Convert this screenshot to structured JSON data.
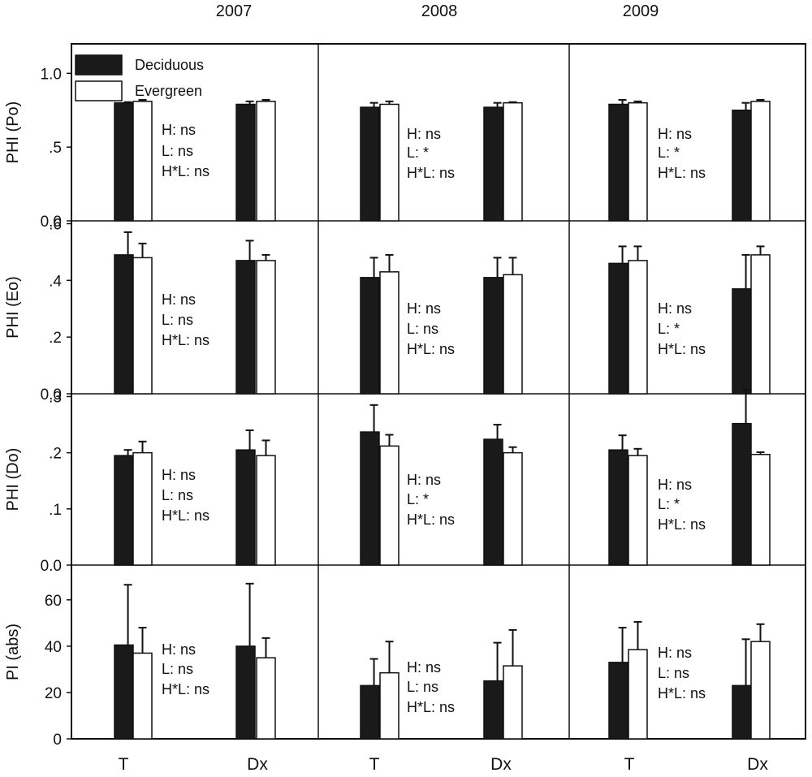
{
  "chart_data": {
    "type": "bar",
    "columns": [
      "2007",
      "2008",
      "2009"
    ],
    "categories": [
      "T",
      "Dx"
    ],
    "legend": [
      {
        "name": "Deciduous",
        "color": "#1a1a1a"
      },
      {
        "name": "Evergreen",
        "color": "#ffffff"
      }
    ],
    "rows": [
      {
        "ylabel": "PHI (Po)",
        "ylim": [
          0,
          1.2
        ],
        "yticks": [
          {
            "v": 0,
            "t": "0.0"
          },
          {
            "v": 0.5,
            "t": ".5"
          },
          {
            "v": 1.0,
            "t": "1.0"
          }
        ],
        "panels": [
          {
            "values": {
              "Deciduous": [
                0.8,
                0.79
              ],
              "Evergreen": [
                0.81,
                0.81
              ]
            },
            "errors": {
              "Deciduous": [
                0.005,
                0.02
              ],
              "Evergreen": [
                0.01,
                0.01
              ]
            },
            "stats": [
              "H: ns",
              "L: ns",
              "H*L: ns"
            ]
          },
          {
            "values": {
              "Deciduous": [
                0.77,
                0.77
              ],
              "Evergreen": [
                0.79,
                0.8
              ]
            },
            "errors": {
              "Deciduous": [
                0.03,
                0.03
              ],
              "Evergreen": [
                0.02,
                0.005
              ]
            },
            "stats": [
              "H: ns",
              "L: *",
              "H*L: ns"
            ]
          },
          {
            "values": {
              "Deciduous": [
                0.79,
                0.75
              ],
              "Evergreen": [
                0.8,
                0.81
              ]
            },
            "errors": {
              "Deciduous": [
                0.03,
                0.05
              ],
              "Evergreen": [
                0.01,
                0.01
              ]
            },
            "stats": [
              "H: ns",
              "L: *",
              "H*L: ns"
            ]
          }
        ]
      },
      {
        "ylabel": "PHI (Eo)",
        "ylim": [
          0,
          0.61
        ],
        "yticks": [
          {
            "v": 0,
            "t": "0.0"
          },
          {
            "v": 0.2,
            "t": ".2"
          },
          {
            "v": 0.4,
            "t": ".4"
          },
          {
            "v": 0.6,
            "t": ".6"
          }
        ],
        "panels": [
          {
            "values": {
              "Deciduous": [
                0.49,
                0.47
              ],
              "Evergreen": [
                0.48,
                0.47
              ]
            },
            "errors": {
              "Deciduous": [
                0.08,
                0.07
              ],
              "Evergreen": [
                0.05,
                0.02
              ]
            },
            "stats": [
              "H: ns",
              "L: ns",
              "H*L: ns"
            ]
          },
          {
            "values": {
              "Deciduous": [
                0.41,
                0.41
              ],
              "Evergreen": [
                0.43,
                0.42
              ]
            },
            "errors": {
              "Deciduous": [
                0.07,
                0.07
              ],
              "Evergreen": [
                0.06,
                0.06
              ]
            },
            "stats": [
              "H: ns",
              "L: ns",
              "H*L: ns"
            ]
          },
          {
            "values": {
              "Deciduous": [
                0.46,
                0.37
              ],
              "Evergreen": [
                0.47,
                0.49
              ]
            },
            "errors": {
              "Deciduous": [
                0.06,
                0.12
              ],
              "Evergreen": [
                0.05,
                0.03
              ]
            },
            "stats": [
              "H: ns",
              "L: *",
              "H*L: ns"
            ]
          }
        ]
      },
      {
        "ylabel": "PHI (Do)",
        "ylim": [
          0,
          0.305
        ],
        "yticks": [
          {
            "v": 0,
            "t": "0.0"
          },
          {
            "v": 0.1,
            "t": ".1"
          },
          {
            "v": 0.2,
            "t": ".2"
          },
          {
            "v": 0.3,
            "t": ".3"
          }
        ],
        "panels": [
          {
            "values": {
              "Deciduous": [
                0.195,
                0.205
              ],
              "Evergreen": [
                0.2,
                0.195
              ]
            },
            "errors": {
              "Deciduous": [
                0.01,
                0.035
              ],
              "Evergreen": [
                0.02,
                0.027
              ]
            },
            "stats": [
              "H: ns",
              "L: ns",
              "H*L: ns"
            ]
          },
          {
            "values": {
              "Deciduous": [
                0.237,
                0.224
              ],
              "Evergreen": [
                0.212,
                0.2
              ]
            },
            "errors": {
              "Deciduous": [
                0.048,
                0.026
              ],
              "Evergreen": [
                0.02,
                0.01
              ]
            },
            "stats": [
              "H: ns",
              "L: *",
              "H*L: ns"
            ]
          },
          {
            "values": {
              "Deciduous": [
                0.205,
                0.252
              ],
              "Evergreen": [
                0.195,
                0.197
              ]
            },
            "errors": {
              "Deciduous": [
                0.026,
                0.06
              ],
              "Evergreen": [
                0.012,
                0.004
              ]
            },
            "stats": [
              "H: ns",
              "L: *",
              "H*L: ns"
            ]
          }
        ]
      },
      {
        "ylabel": "PI (abs)",
        "ylim": [
          0,
          75
        ],
        "yticks": [
          {
            "v": 0,
            "t": "0"
          },
          {
            "v": 20,
            "t": "20"
          },
          {
            "v": 40,
            "t": "40"
          },
          {
            "v": 60,
            "t": "60"
          }
        ],
        "panels": [
          {
            "values": {
              "Deciduous": [
                40.5,
                40
              ],
              "Evergreen": [
                37,
                35
              ]
            },
            "errors": {
              "Deciduous": [
                26,
                27
              ],
              "Evergreen": [
                11,
                8.5
              ]
            },
            "stats": [
              "H: ns",
              "L: ns",
              "H*L: ns"
            ]
          },
          {
            "values": {
              "Deciduous": [
                23,
                25
              ],
              "Evergreen": [
                28.5,
                31.5
              ]
            },
            "errors": {
              "Deciduous": [
                11.5,
                16.5
              ],
              "Evergreen": [
                13.5,
                15.5
              ]
            },
            "stats": [
              "H: ns",
              "L: ns",
              "H*L: ns"
            ]
          },
          {
            "values": {
              "Deciduous": [
                33,
                23
              ],
              "Evergreen": [
                38.5,
                42
              ]
            },
            "errors": {
              "Deciduous": [
                15,
                20
              ],
              "Evergreen": [
                12,
                7.5
              ]
            },
            "stats": [
              "H: ns",
              "L: ns",
              "H*L: ns"
            ]
          }
        ]
      }
    ]
  }
}
